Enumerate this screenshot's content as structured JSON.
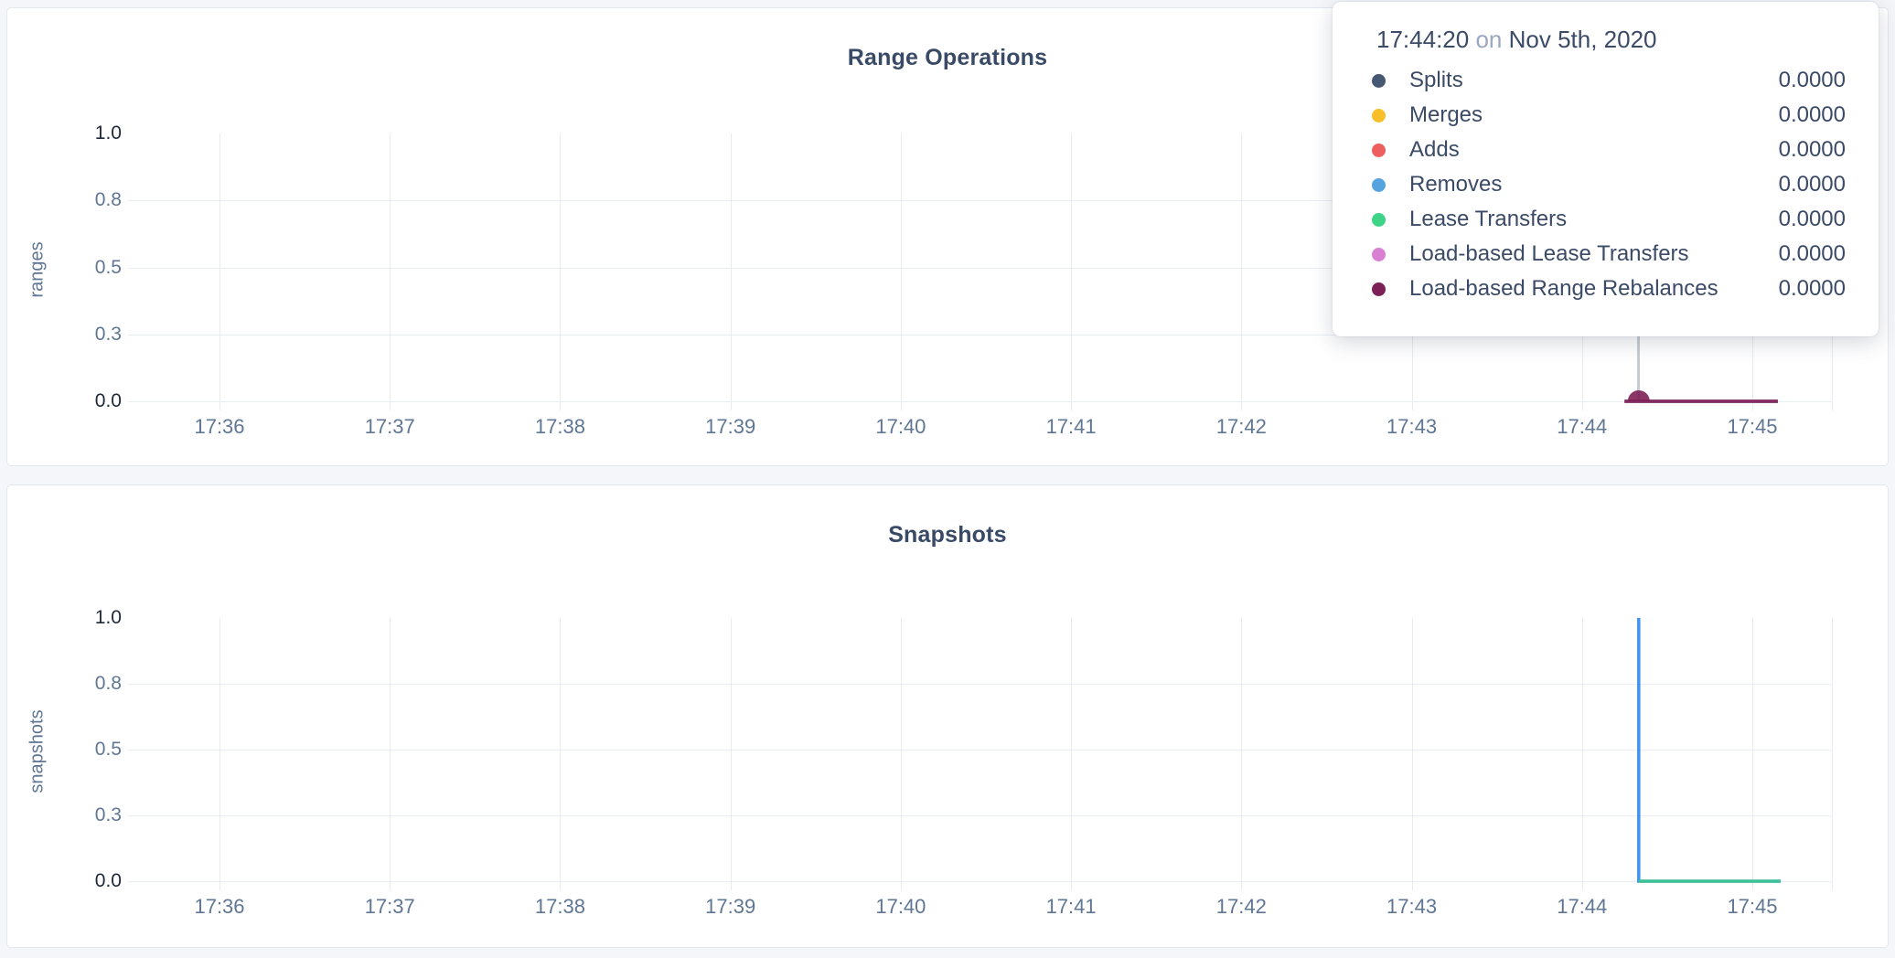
{
  "tooltip": {
    "time": "17:44:20",
    "connector": "on",
    "date": "Nov 5th, 2020",
    "hover_chart": 0,
    "rows": [
      {
        "label": "Splits",
        "value": "0.0000",
        "color": "#475872"
      },
      {
        "label": "Merges",
        "value": "0.0000",
        "color": "#f8bf2b"
      },
      {
        "label": "Adds",
        "value": "0.0000",
        "color": "#ef5e5f"
      },
      {
        "label": "Removes",
        "value": "0.0000",
        "color": "#55a4e0"
      },
      {
        "label": "Lease Transfers",
        "value": "0.0000",
        "color": "#3ed488"
      },
      {
        "label": "Load-based Lease Transfers",
        "value": "0.0000",
        "color": "#d980d2"
      },
      {
        "label": "Load-based Range Rebalances",
        "value": "0.0000",
        "color": "#7d2057"
      }
    ]
  },
  "chart_data": [
    {
      "type": "line",
      "title": "Range Operations",
      "ylabel": "ranges",
      "ylim": [
        0,
        1
      ],
      "grid": true,
      "y_ticks": [
        {
          "label": "1.0",
          "value": 1.0
        },
        {
          "label": "0.8",
          "value": 0.75
        },
        {
          "label": "0.5",
          "value": 0.5
        },
        {
          "label": "0.3",
          "value": 0.25
        },
        {
          "label": "0.0",
          "value": 0.0
        }
      ],
      "x_ticks": [
        {
          "label": "17:36",
          "time": "17:36:00"
        },
        {
          "label": "17:37",
          "time": "17:37:00"
        },
        {
          "label": "17:38",
          "time": "17:38:00"
        },
        {
          "label": "17:39",
          "time": "17:39:00"
        },
        {
          "label": "17:40",
          "time": "17:40:00"
        },
        {
          "label": "17:41",
          "time": "17:41:00"
        },
        {
          "label": "17:42",
          "time": "17:42:00"
        },
        {
          "label": "17:43",
          "time": "17:43:00"
        },
        {
          "label": "17:44",
          "time": "17:44:00"
        },
        {
          "label": "17:45",
          "time": "17:45:00"
        }
      ],
      "series": [
        {
          "name": "Splits",
          "color": "#475872",
          "points": [
            [
              "17:44:15",
              0
            ],
            [
              "17:45:09",
              0
            ]
          ]
        },
        {
          "name": "Merges",
          "color": "#f8bf2b",
          "points": [
            [
              "17:44:15",
              0
            ],
            [
              "17:45:09",
              0
            ]
          ]
        },
        {
          "name": "Adds",
          "color": "#ef5e5f",
          "points": [
            [
              "17:44:15",
              0
            ],
            [
              "17:45:09",
              0
            ]
          ]
        },
        {
          "name": "Removes",
          "color": "#55a4e0",
          "points": [
            [
              "17:44:15",
              0
            ],
            [
              "17:45:09",
              0
            ]
          ]
        },
        {
          "name": "Lease Transfers",
          "color": "#3ed488",
          "points": [
            [
              "17:44:15",
              0
            ],
            [
              "17:45:09",
              0
            ]
          ]
        },
        {
          "name": "Load-based Lease Transfers",
          "color": "#d980d2",
          "points": [
            [
              "17:44:15",
              0
            ],
            [
              "17:45:09",
              0
            ]
          ]
        },
        {
          "name": "Load-based Range Rebalances",
          "color": "#7d2057",
          "points": [
            [
              "17:44:15",
              0
            ],
            [
              "17:45:09",
              0
            ]
          ]
        }
      ],
      "hover": {
        "time": "17:44:20",
        "value": 0
      }
    },
    {
      "type": "line",
      "title": "Snapshots",
      "ylabel": "snapshots",
      "ylim": [
        0,
        1
      ],
      "grid": true,
      "y_ticks": [
        {
          "label": "1.0",
          "value": 1.0
        },
        {
          "label": "0.8",
          "value": 0.75
        },
        {
          "label": "0.5",
          "value": 0.5
        },
        {
          "label": "0.3",
          "value": 0.25
        },
        {
          "label": "0.0",
          "value": 0.0
        }
      ],
      "x_ticks": [
        {
          "label": "17:36",
          "time": "17:36:00"
        },
        {
          "label": "17:37",
          "time": "17:37:00"
        },
        {
          "label": "17:38",
          "time": "17:38:00"
        },
        {
          "label": "17:39",
          "time": "17:39:00"
        },
        {
          "label": "17:40",
          "time": "17:40:00"
        },
        {
          "label": "17:41",
          "time": "17:41:00"
        },
        {
          "label": "17:42",
          "time": "17:42:00"
        },
        {
          "label": "17:43",
          "time": "17:43:00"
        },
        {
          "label": "17:44",
          "time": "17:44:00"
        },
        {
          "label": "17:45",
          "time": "17:45:00"
        }
      ],
      "series": [
        {
          "name": "blue",
          "color": "#2e87ee",
          "points": [
            [
              "17:44:20",
              0
            ],
            [
              "17:44:20",
              1
            ],
            [
              "17:44:20",
              0
            ],
            [
              "17:45:10",
              0
            ]
          ]
        },
        {
          "name": "green",
          "color": "#3fc98b",
          "points": [
            [
              "17:44:20",
              0
            ],
            [
              "17:45:10",
              0
            ]
          ]
        }
      ]
    }
  ]
}
